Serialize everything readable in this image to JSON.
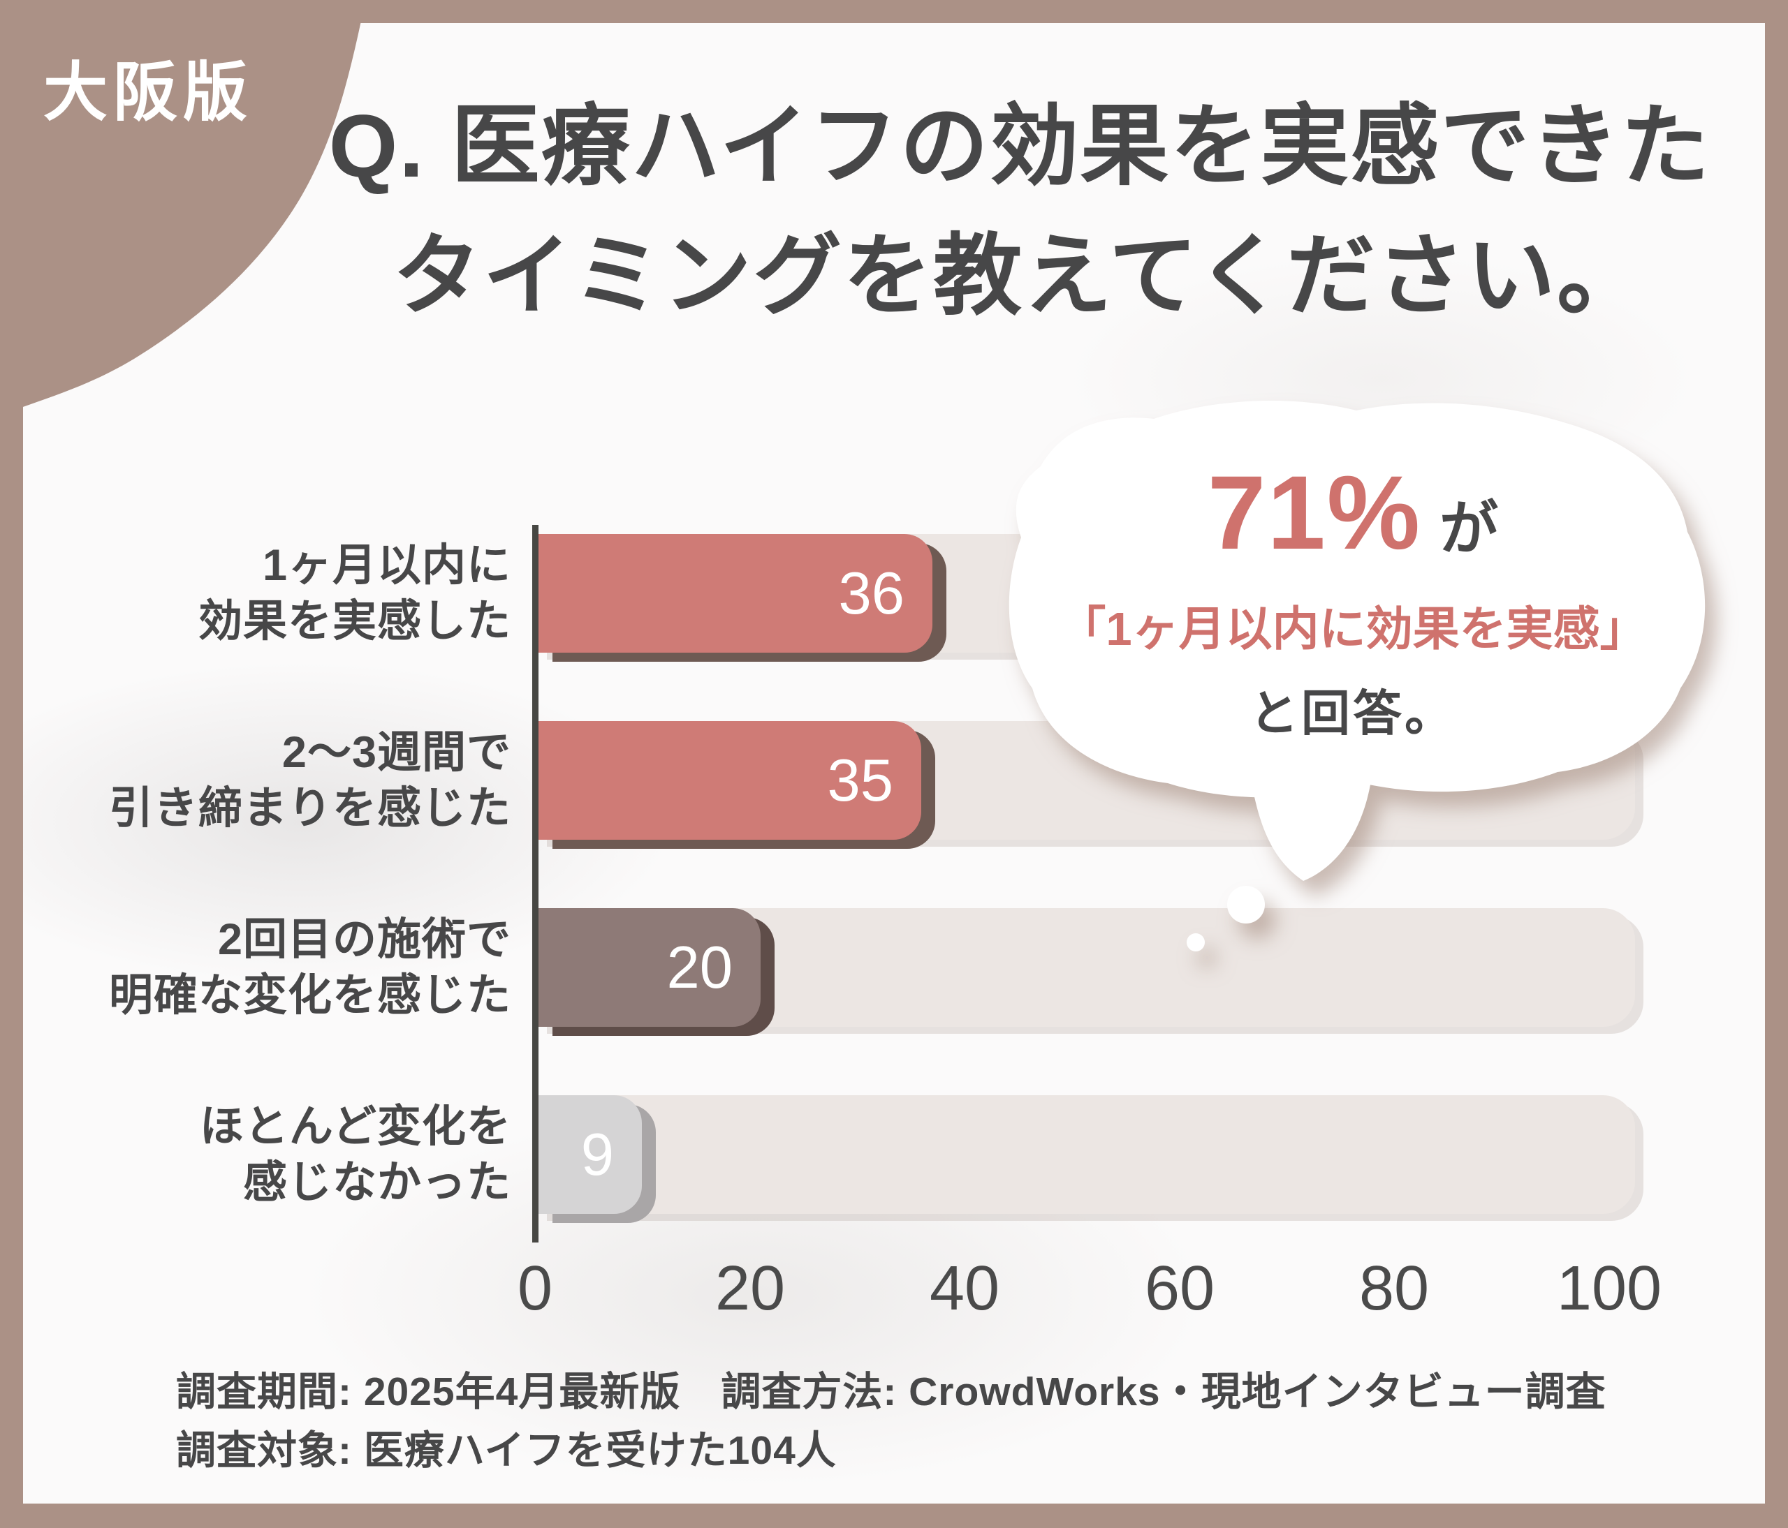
{
  "badge": {
    "label": "大阪版"
  },
  "title": {
    "line1": "Q. 医療ハイフの効果を実感できた",
    "line2": "タイミングを教えてください。"
  },
  "chart_data": {
    "type": "bar",
    "orientation": "horizontal",
    "title": "医療ハイフの効果を実感できたタイミング",
    "categories": [
      "1ヶ月以内に効果を実感した",
      "2〜3週間で引き締まりを感じた",
      "2回目の施術で明確な変化を感じた",
      "ほとんど変化を感じなかった"
    ],
    "category_lines": [
      {
        "line1": "1ヶ月以内に",
        "line2": "効果を実感した"
      },
      {
        "line1": "2〜3週間で",
        "line2": "引き締まりを感じた"
      },
      {
        "line1": "2回目の施術で",
        "line2": "明確な変化を感じた"
      },
      {
        "line1": "ほとんど変化を",
        "line2": "感じなかった"
      }
    ],
    "values": [
      36,
      35,
      20,
      9
    ],
    "xlim": [
      0,
      100
    ],
    "tick_labels": [
      "0",
      "20",
      "40",
      "60",
      "80",
      "100"
    ],
    "grid": false,
    "legend": false,
    "bar_colors": [
      "#cf7b76",
      "#cf7b76",
      "#8e7a77",
      "#d5d4d5"
    ],
    "bar_shadow_colors": [
      "#6e5a53",
      "#6e5a53",
      "#5f4d49",
      "#a9a6a7"
    ],
    "track_color": "#ece6e3"
  },
  "callout": {
    "percent": "71%",
    "percent_suffix": "が",
    "line2": "「1ヶ月以内に効果を実感」",
    "line3": "と回答。"
  },
  "footer": {
    "line1": "調査期間: 2025年4月最新版　調査方法: CrowdWorks・現地インタビュー調査",
    "line2": "調査対象: 医療ハイフを受けた104人"
  },
  "colors": {
    "frame_brown": "#ab9186",
    "background": "#fbfafa",
    "text_dark": "#474748",
    "accent_salmon": "#cf726d",
    "bubble_white": "#ffffff"
  }
}
